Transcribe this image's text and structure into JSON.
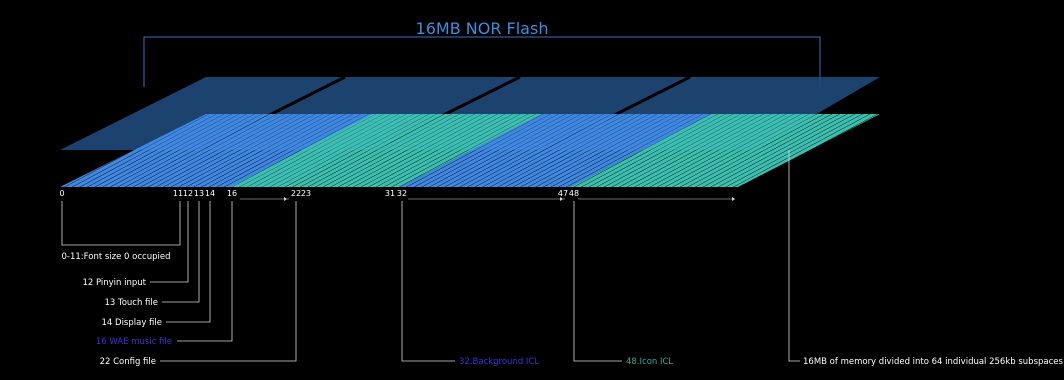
{
  "title": "16MB NOR Flash",
  "colors": {
    "background": "#000000",
    "title": "#3a8fe0",
    "layer_top": "#1e4a7a",
    "stripe_blue": "#3f87e0",
    "stripe_teal": "#3cbfae",
    "leader": "#d8d8d8",
    "label_white": "#ffffff",
    "label_blue": "#3d35d8",
    "label_teal": "#3aaa9a"
  },
  "ticks": [
    "0",
    "11",
    "12",
    "13",
    "14",
    "16",
    "22",
    "23",
    "31",
    "32",
    "47",
    "48"
  ],
  "labels": [
    {
      "text": "0-11:Font size 0 occupied",
      "color": "white"
    },
    {
      "text": "12 Pinyin input",
      "color": "white"
    },
    {
      "text": "13 Touch file",
      "color": "white"
    },
    {
      "text": "14 Display file",
      "color": "white"
    },
    {
      "text": "16 WAE music file",
      "color": "blue"
    },
    {
      "text": "22 Config file",
      "color": "white"
    },
    {
      "text": "32.Background ICL",
      "color": "blue"
    },
    {
      "text": "48.Icon ICL",
      "color": "teal"
    },
    {
      "text": "16MB of memory divided into 64 individual 256kb subspaces",
      "color": "white"
    }
  ]
}
